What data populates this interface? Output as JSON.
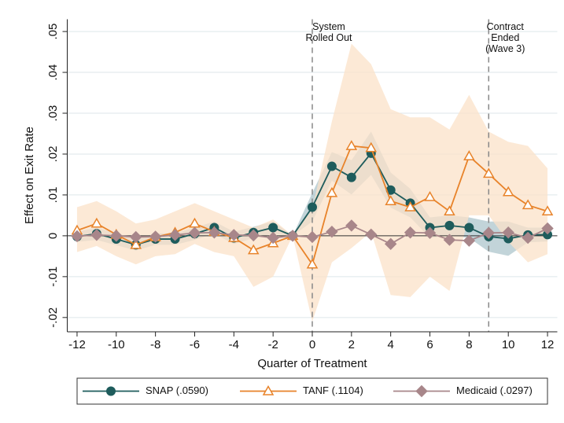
{
  "chart_data": {
    "type": "line",
    "x_label": "Quarter of Treatment",
    "y_label": "Effect on Exit Rate",
    "x": [
      -12,
      -11,
      -10,
      -9,
      -8,
      -7,
      -6,
      -5,
      -4,
      -3,
      -2,
      -1,
      0,
      1,
      2,
      3,
      4,
      5,
      6,
      7,
      8,
      9,
      10,
      11,
      12
    ],
    "xlim": [
      -12.5,
      12.5
    ],
    "xticks": [
      -12,
      -10,
      -8,
      -6,
      -4,
      -2,
      0,
      2,
      4,
      6,
      8,
      10,
      12
    ],
    "ylim": [
      -0.0235,
      0.053
    ],
    "yticks": [
      {
        "value": -0.02,
        "label": "-.02"
      },
      {
        "value": -0.01,
        "label": "-.01"
      },
      0,
      {
        "value": 0.01,
        "label": ".01"
      },
      {
        "value": 0.02,
        "label": ".02"
      },
      {
        "value": 0.03,
        "label": ".03"
      },
      {
        "value": 0.04,
        "label": ".04"
      },
      {
        "value": 0.05,
        "label": ".05"
      }
    ],
    "grid": true,
    "series": [
      {
        "name": "SNAP (.0590)",
        "color": "#1e5c5c",
        "marker": "circle",
        "band_color": "#aec6cc",
        "values": [
          -0.0002,
          0.0005,
          -0.0008,
          -0.0022,
          -0.0008,
          -0.0008,
          0.0005,
          0.002,
          -0.0005,
          0.0008,
          0.002,
          0,
          0.007,
          0.017,
          0.0143,
          0.0202,
          0.0112,
          0.008,
          0.002,
          0.0025,
          0.002,
          -0.0002,
          -0.0007,
          0.0002,
          0.0003
        ],
        "ci_upper": [
          0.001,
          0.002,
          0.0007,
          -0.0008,
          0.0006,
          0.0006,
          0.002,
          0.0035,
          0.001,
          0.0022,
          0.0035,
          0,
          0.0105,
          0.0205,
          0.0185,
          0.0255,
          0.0155,
          0.0115,
          0.0045,
          0.005,
          0.0045,
          0.0035,
          0.0035,
          0.002,
          0.002
        ],
        "ci_lower": [
          -0.0015,
          -0.001,
          -0.0023,
          -0.0036,
          -0.0022,
          -0.0022,
          -0.001,
          0.0005,
          -0.002,
          -0.0006,
          0.0005,
          0,
          0.0035,
          0.0135,
          0.0101,
          0.0149,
          0.0069,
          0.0045,
          -0.0005,
          0,
          -0.0005,
          -0.0039,
          -0.0049,
          -0.0016,
          -0.0014
        ]
      },
      {
        "name": "TANF (.1104)",
        "color": "#e8832a",
        "marker": "triangle-open",
        "band_color": "#fbe2c8",
        "values": [
          0.0013,
          0.003,
          0.0003,
          -0.0022,
          -0.0003,
          0.0008,
          0.003,
          0.001,
          -0.0005,
          -0.0035,
          -0.0018,
          0,
          -0.007,
          0.0105,
          0.022,
          0.0215,
          0.0085,
          0.007,
          0.0095,
          0.006,
          0.0195,
          0.0152,
          0.0107,
          0.0075,
          0.006
        ],
        "ci_upper": [
          0.007,
          0.0085,
          0.006,
          0.003,
          0.004,
          0.006,
          0.008,
          0.006,
          0.004,
          0.002,
          0.004,
          0,
          0.0065,
          0.028,
          0.047,
          0.042,
          0.031,
          0.029,
          0.029,
          0.026,
          0.0345,
          0.0255,
          0.023,
          0.022,
          0.0165
        ],
        "ci_lower": [
          -0.004,
          -0.0025,
          -0.005,
          -0.007,
          -0.005,
          -0.0045,
          -0.002,
          -0.004,
          -0.005,
          -0.0125,
          -0.01,
          0,
          -0.021,
          -0.0065,
          -0.003,
          0.001,
          -0.0145,
          -0.015,
          -0.01,
          -0.0135,
          0.005,
          0.005,
          -0.0015,
          -0.0065,
          -0.0045
        ]
      },
      {
        "name": "Medicaid (.0297)",
        "color": "#a8868a",
        "marker": "diamond",
        "values": [
          -0.0001,
          0.0002,
          0,
          -0.0003,
          -0.0002,
          0.0002,
          0.0007,
          0.0008,
          0.0002,
          0.0001,
          -0.0005,
          0,
          -0.0003,
          0.001,
          0.0025,
          0.0003,
          -0.002,
          0.0008,
          0.0007,
          -0.001,
          -0.0012,
          0.0007,
          0.0008,
          -0.0005,
          0.0018
        ]
      }
    ],
    "annotations": [
      {
        "x": 0,
        "lines": [
          "System",
          "Rolled Out"
        ]
      },
      {
        "x": 9,
        "lines": [
          "Contract",
          "Ended",
          "(Wave 3)"
        ]
      }
    ]
  }
}
